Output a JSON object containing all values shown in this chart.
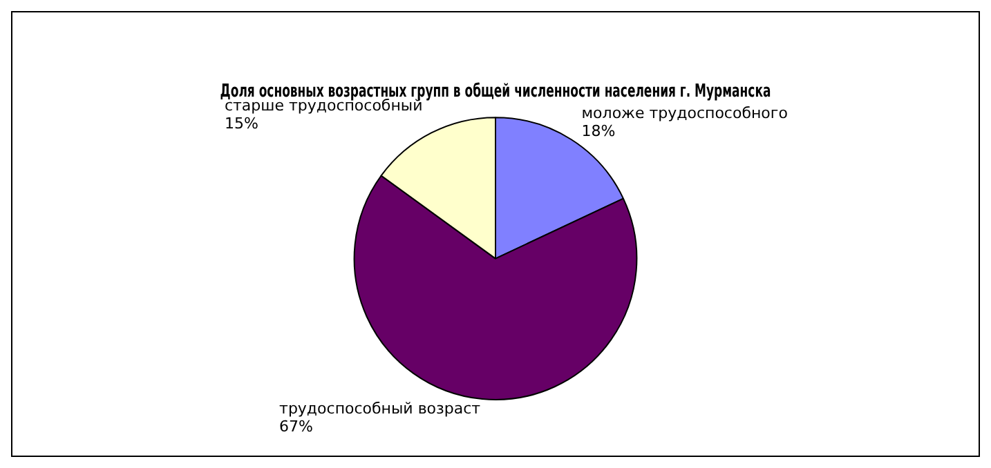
{
  "chart_data": {
    "type": "pie",
    "title": "Доля основных возрастных групп в общей численности населения г. Мурманска",
    "categories": [
      "моложе трудоспособного",
      "трудоспособный возраст",
      "старше трудоспособный"
    ],
    "values": [
      18,
      67,
      15
    ],
    "value_labels": [
      "18%",
      "67%",
      "15%"
    ],
    "colors": [
      "#8080ff",
      "#660066",
      "#ffffcc"
    ],
    "legend": false
  }
}
